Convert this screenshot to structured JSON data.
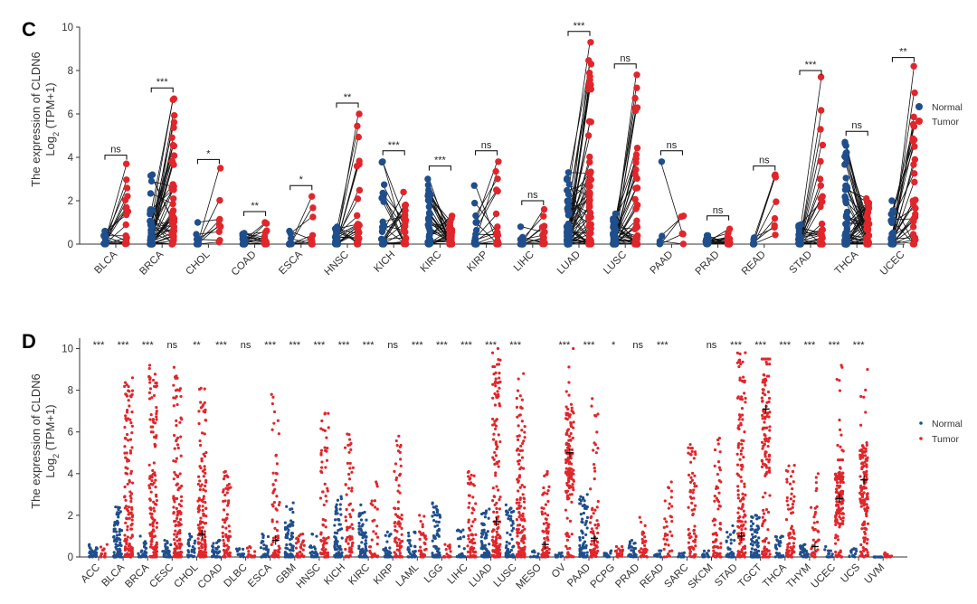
{
  "colors": {
    "normal": "#1f4e8c",
    "tumor": "#e0262b",
    "axis": "#333333",
    "bracket": "#000000",
    "median": "#000000"
  },
  "chart_data": [
    {
      "type": "scatter",
      "subtype": "paired-dot",
      "panel_label": "C",
      "ylabel_line1": "The expression of CLDN6",
      "ylabel_line2_prefix": "Log",
      "ylabel_line2_sub": "2",
      "ylabel_line2_suffix": " (TPM+1)",
      "ylim": [
        0,
        10
      ],
      "yticks": [
        0,
        2,
        4,
        6,
        8,
        10
      ],
      "legend": {
        "position": "right",
        "entries": [
          "Normal",
          "Tumor"
        ]
      },
      "categories": [
        "BLCA",
        "BRCA",
        "CHOL",
        "COAD",
        "ESCA",
        "HNSC",
        "KICH",
        "KIRC",
        "KIRP",
        "LIHC",
        "LUAD",
        "LUSC",
        "PAAD",
        "PRAD",
        "READ",
        "STAD",
        "THCA",
        "UCEC"
      ],
      "significance": [
        "ns",
        "***",
        "*",
        "**",
        "*",
        "**",
        "***",
        "***",
        "ns",
        "ns",
        "***",
        "ns",
        "ns",
        "ns",
        "ns",
        "***",
        "ns",
        "**"
      ],
      "bracket_height": [
        4.1,
        7.2,
        3.9,
        1.5,
        2.7,
        6.5,
        4.3,
        3.6,
        4.3,
        2.0,
        9.8,
        8.3,
        4.3,
        1.3,
        3.6,
        8.0,
        5.2,
        8.6
      ],
      "normal_max": [
        0.6,
        3.2,
        1.0,
        0.5,
        0.6,
        0.8,
        3.8,
        3.0,
        2.7,
        0.8,
        3.3,
        1.4,
        3.8,
        0.4,
        0.3,
        0.9,
        4.7,
        2.0
      ],
      "tumor_max": [
        3.7,
        6.7,
        3.5,
        1.0,
        2.2,
        6.0,
        2.4,
        1.3,
        3.8,
        1.6,
        9.3,
        7.8,
        1.3,
        0.7,
        3.2,
        7.7,
        2.1,
        8.2
      ],
      "pairs_count": [
        18,
        50,
        9,
        20,
        10,
        25,
        25,
        40,
        20,
        15,
        60,
        45,
        5,
        20,
        8,
        30,
        55,
        30
      ]
    },
    {
      "type": "scatter",
      "subtype": "jitter",
      "panel_label": "D",
      "ylabel_line1": "The expression of CLDN6",
      "ylabel_line2_prefix": "Log",
      "ylabel_line2_sub": "2",
      "ylabel_line2_suffix": " (TPM+1)",
      "ylim": [
        0,
        10.5
      ],
      "yticks": [
        0,
        2,
        4,
        6,
        8,
        10
      ],
      "legend": {
        "position": "right",
        "entries": [
          "Normal",
          "Tumor"
        ]
      },
      "categories": [
        "ACC",
        "BLCA",
        "BRCA",
        "CESC",
        "CHOL",
        "COAD",
        "DLBC",
        "ESCA",
        "GBM",
        "HNSC",
        "KICH",
        "KIRC",
        "KIRP",
        "LAML",
        "LGG",
        "LIHC",
        "LUAD",
        "LUSC",
        "MESO",
        "OV",
        "PAAD",
        "PCPG",
        "PRAD",
        "READ",
        "SARC",
        "SKCM",
        "STAD",
        "TGCT",
        "THCA",
        "THYM",
        "UCEC",
        "UCS",
        "UVM"
      ],
      "significance": [
        "***",
        "***",
        "***",
        "ns",
        "**",
        "***",
        "ns",
        "***",
        "***",
        "***",
        "***",
        "***",
        "ns",
        "***",
        "***",
        "***",
        "***",
        "***",
        "",
        "***",
        "***",
        "*",
        "ns",
        "***",
        "",
        "ns",
        "***",
        "***",
        "***",
        "***",
        "***",
        "***",
        ""
      ],
      "normal_max": [
        0.6,
        2.4,
        1.0,
        0.8,
        1.1,
        0.8,
        0.4,
        1.1,
        2.6,
        1.1,
        2.9,
        2.5,
        1.2,
        1.2,
        2.6,
        1.3,
        2.3,
        2.5,
        0.3,
        0.2,
        3.0,
        0.3,
        0.8,
        0.3,
        0.2,
        0.3,
        1.5,
        2.0,
        1.0,
        0.6,
        0.5,
        0.4,
        0.0
      ],
      "tumor_max": [
        0.6,
        8.6,
        9.2,
        9.1,
        8.1,
        4.1,
        0.5,
        7.8,
        1.1,
        6.9,
        5.9,
        3.6,
        5.8,
        2.0,
        0.6,
        4.1,
        10.0,
        8.8,
        4.1,
        10.0,
        7.6,
        0.5,
        1.9,
        3.6,
        5.4,
        5.7,
        9.8,
        9.5,
        4.4,
        4.0,
        9.2,
        9.0,
        0.2
      ],
      "tumor_median": [
        0.1,
        0.2,
        0.3,
        0.2,
        1.1,
        0.1,
        0.1,
        0.8,
        0.3,
        0.3,
        0.1,
        0.1,
        0.2,
        0.1,
        0.1,
        0.1,
        1.7,
        0.2,
        0.6,
        5.0,
        0.9,
        0.0,
        0.0,
        0.2,
        0.0,
        0.1,
        1.0,
        7.1,
        0.1,
        0.5,
        2.8,
        3.7,
        0.0
      ]
    }
  ]
}
